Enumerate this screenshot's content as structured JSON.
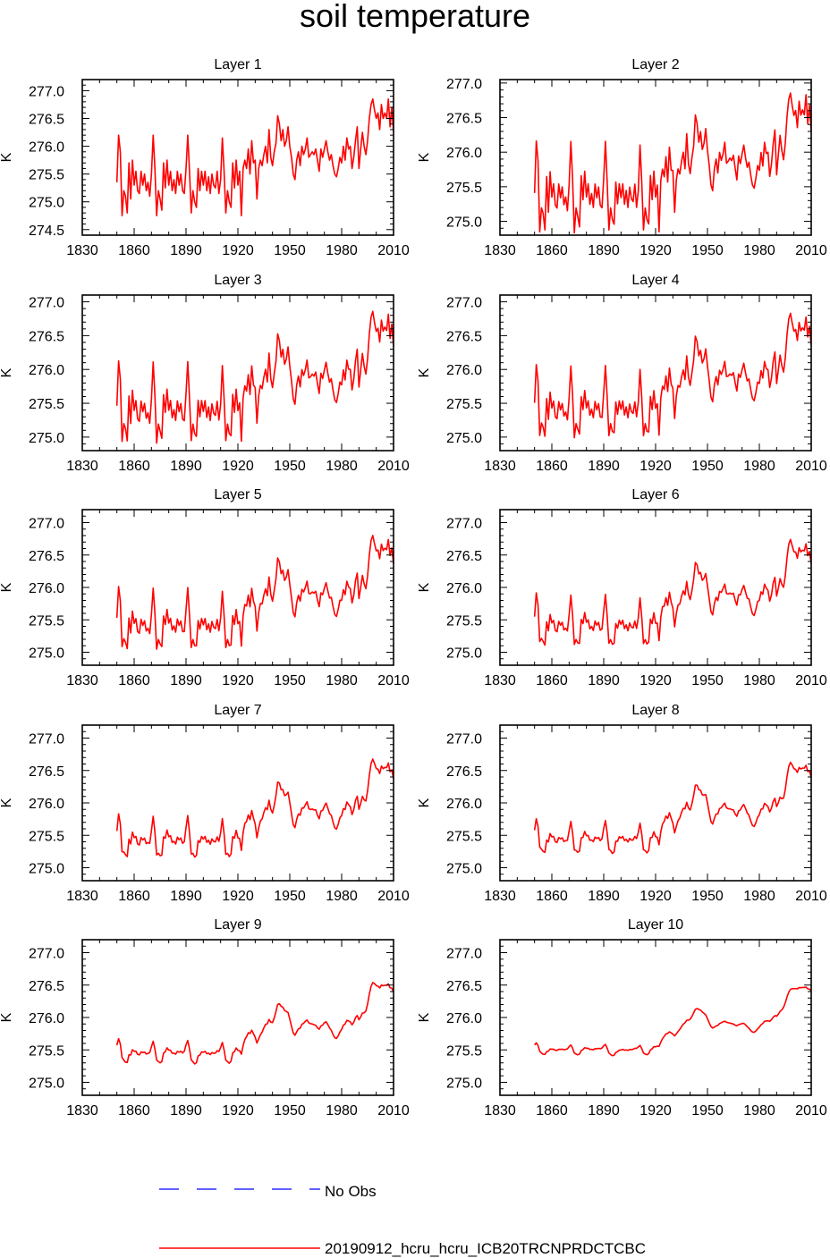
{
  "page": {
    "title": "soil temperature"
  },
  "legend": {
    "entries": [
      {
        "label": "No Obs",
        "color": "#0000ff",
        "style": "dashed"
      },
      {
        "label": "20190912_hcru_hcru_ICB20TRCNPRDCTCBC",
        "color": "#ff0000",
        "style": "solid"
      }
    ]
  },
  "chart_data": {
    "type": "line",
    "title": "soil temperature",
    "ylabel": "K",
    "xlim": [
      1830,
      2010
    ],
    "xticks": [
      1830,
      1860,
      1890,
      1920,
      1950,
      1980,
      2010
    ],
    "series_name": "20190912_hcru_hcru_ICB20TRCNPRDCTCBC",
    "series_color": "#ff0000",
    "base_years": [
      1850,
      1851,
      1852,
      1853,
      1854,
      1855,
      1856,
      1857,
      1858,
      1859,
      1860,
      1861,
      1862,
      1863,
      1864,
      1865,
      1866,
      1867,
      1868,
      1869,
      1870,
      1871,
      1872,
      1873,
      1874,
      1875,
      1876,
      1877,
      1878,
      1879,
      1880,
      1881,
      1882,
      1883,
      1884,
      1885,
      1886,
      1887,
      1888,
      1889,
      1890,
      1891,
      1892,
      1893,
      1894,
      1895,
      1896,
      1897,
      1898,
      1899,
      1900,
      1901,
      1902,
      1903,
      1904,
      1905,
      1906,
      1907,
      1908,
      1909,
      1910,
      1911,
      1912,
      1913,
      1914,
      1915,
      1916,
      1917,
      1918,
      1919,
      1920,
      1921,
      1922,
      1923,
      1924,
      1925,
      1926,
      1927,
      1928,
      1929,
      1930,
      1931,
      1932,
      1933,
      1934,
      1935,
      1936,
      1937,
      1938,
      1939,
      1940,
      1941,
      1942,
      1943,
      1944,
      1945,
      1946,
      1947,
      1948,
      1949,
      1950,
      1951,
      1952,
      1953,
      1954,
      1955,
      1956,
      1957,
      1958,
      1959,
      1960,
      1961,
      1962,
      1963,
      1964,
      1965,
      1966,
      1967,
      1968,
      1969,
      1970,
      1971,
      1972,
      1973,
      1974,
      1975,
      1976,
      1977,
      1978,
      1979,
      1980,
      1981,
      1982,
      1983,
      1984,
      1985,
      1986,
      1987,
      1988,
      1989,
      1990,
      1991,
      1992,
      1993,
      1994,
      1995,
      1996,
      1997,
      1998,
      1999,
      2000,
      2001,
      2002,
      2003,
      2004,
      2005,
      2006,
      2007,
      2008,
      2009,
      2010
    ],
    "base_values": [
      275.35,
      276.2,
      275.9,
      274.75,
      275.2,
      275.1,
      274.8,
      275.7,
      275.05,
      275.75,
      275.3,
      275.55,
      275.2,
      275.15,
      275.55,
      275.3,
      275.5,
      275.2,
      275.35,
      275.1,
      275.5,
      276.2,
      275.6,
      274.75,
      275.2,
      275.05,
      274.85,
      275.7,
      275.25,
      275.75,
      275.3,
      275.55,
      275.2,
      275.4,
      275.15,
      275.55,
      275.3,
      275.5,
      275.2,
      275.15,
      275.6,
      276.2,
      275.55,
      274.8,
      275.2,
      275.0,
      274.9,
      275.6,
      275.2,
      275.55,
      275.3,
      275.55,
      275.2,
      275.45,
      275.15,
      275.5,
      275.3,
      275.25,
      275.55,
      275.15,
      275.4,
      276.15,
      275.55,
      274.8,
      275.2,
      275.0,
      274.9,
      275.7,
      275.25,
      275.75,
      275.3,
      275.55,
      274.75,
      275.6,
      275.75,
      275.6,
      275.95,
      275.5,
      276.1,
      275.7,
      275.75,
      275.05,
      275.6,
      275.75,
      275.65,
      275.85,
      276.0,
      275.7,
      276.3,
      275.8,
      275.65,
      275.9,
      276.05,
      276.55,
      276.4,
      276.1,
      276.3,
      276.0,
      276.1,
      276.35,
      276.0,
      275.8,
      275.5,
      275.4,
      275.75,
      275.9,
      275.65,
      276.0,
      275.85,
      275.95,
      276.15,
      275.8,
      275.85,
      275.9,
      275.85,
      275.95,
      275.75,
      275.55,
      275.95,
      275.8,
      275.95,
      276.1,
      275.9,
      275.75,
      275.85,
      275.65,
      275.5,
      275.45,
      275.6,
      275.8,
      275.7,
      276.0,
      275.75,
      276.15,
      275.95,
      276.0,
      275.6,
      275.8,
      276.1,
      276.35,
      275.6,
      275.95,
      276.25,
      276.0,
      275.85,
      276.1,
      276.5,
      276.75,
      276.85,
      276.65,
      276.5,
      276.6,
      276.3,
      276.75,
      276.5,
      276.6,
      276.5,
      276.85,
      276.35,
      276.7,
      276.25
    ],
    "panels": [
      {
        "title": "Layer 1",
        "ylim": [
          274.4,
          277.2
        ],
        "yticks": [
          274.5,
          275.0,
          275.5,
          276.0,
          276.5,
          277.0
        ],
        "smooth": 0.0,
        "scale": 1.0,
        "offset": 0.0,
        "peak": 276.9
      },
      {
        "title": "Layer 2",
        "ylim": [
          274.8,
          277.05
        ],
        "yticks": [
          275.0,
          275.5,
          276.0,
          276.5,
          277.0
        ],
        "smooth": 0.05,
        "scale": 1.0,
        "offset": 0.02,
        "peak": 276.95
      },
      {
        "title": "Layer 3",
        "ylim": [
          274.8,
          277.1
        ],
        "yticks": [
          275.0,
          275.5,
          276.0,
          276.5,
          277.0
        ],
        "smooth": 0.1,
        "scale": 1.0,
        "offset": 0.04,
        "peak": 277.0
      },
      {
        "title": "Layer 4",
        "ylim": [
          274.8,
          277.1
        ],
        "yticks": [
          275.0,
          275.5,
          276.0,
          276.5,
          277.0
        ],
        "smooth": 0.15,
        "scale": 0.98,
        "offset": 0.05,
        "peak": 277.0
      },
      {
        "title": "Layer 5",
        "ylim": [
          274.8,
          277.2
        ],
        "yticks": [
          275.0,
          275.5,
          276.0,
          276.5,
          277.0
        ],
        "smooth": 0.2,
        "scale": 0.97,
        "offset": 0.05,
        "peak": 277.0
      },
      {
        "title": "Layer 6",
        "ylim": [
          274.8,
          277.2
        ],
        "yticks": [
          275.0,
          275.5,
          276.0,
          276.5,
          277.0
        ],
        "smooth": 0.28,
        "scale": 0.95,
        "offset": 0.04,
        "peak": 276.95
      },
      {
        "title": "Layer 7",
        "ylim": [
          274.8,
          277.2
        ],
        "yticks": [
          275.0,
          275.5,
          276.0,
          276.5,
          277.0
        ],
        "smooth": 0.36,
        "scale": 0.92,
        "offset": 0.04,
        "peak": 276.95
      },
      {
        "title": "Layer 8",
        "ylim": [
          274.8,
          277.2
        ],
        "yticks": [
          275.0,
          275.5,
          276.0,
          276.5,
          277.0
        ],
        "smooth": 0.45,
        "scale": 0.9,
        "offset": 0.05,
        "peak": 276.95
      },
      {
        "title": "Layer 9",
        "ylim": [
          274.8,
          277.2
        ],
        "yticks": [
          275.0,
          275.5,
          276.0,
          276.5,
          277.0
        ],
        "smooth": 0.55,
        "scale": 0.86,
        "offset": 0.05,
        "peak": 276.95
      },
      {
        "title": "Layer 10",
        "ylim": [
          274.8,
          277.2
        ],
        "yticks": [
          275.0,
          275.5,
          276.0,
          276.5,
          277.0
        ],
        "smooth": 0.7,
        "scale": 0.8,
        "offset": 0.08,
        "peak": 276.95
      }
    ]
  }
}
